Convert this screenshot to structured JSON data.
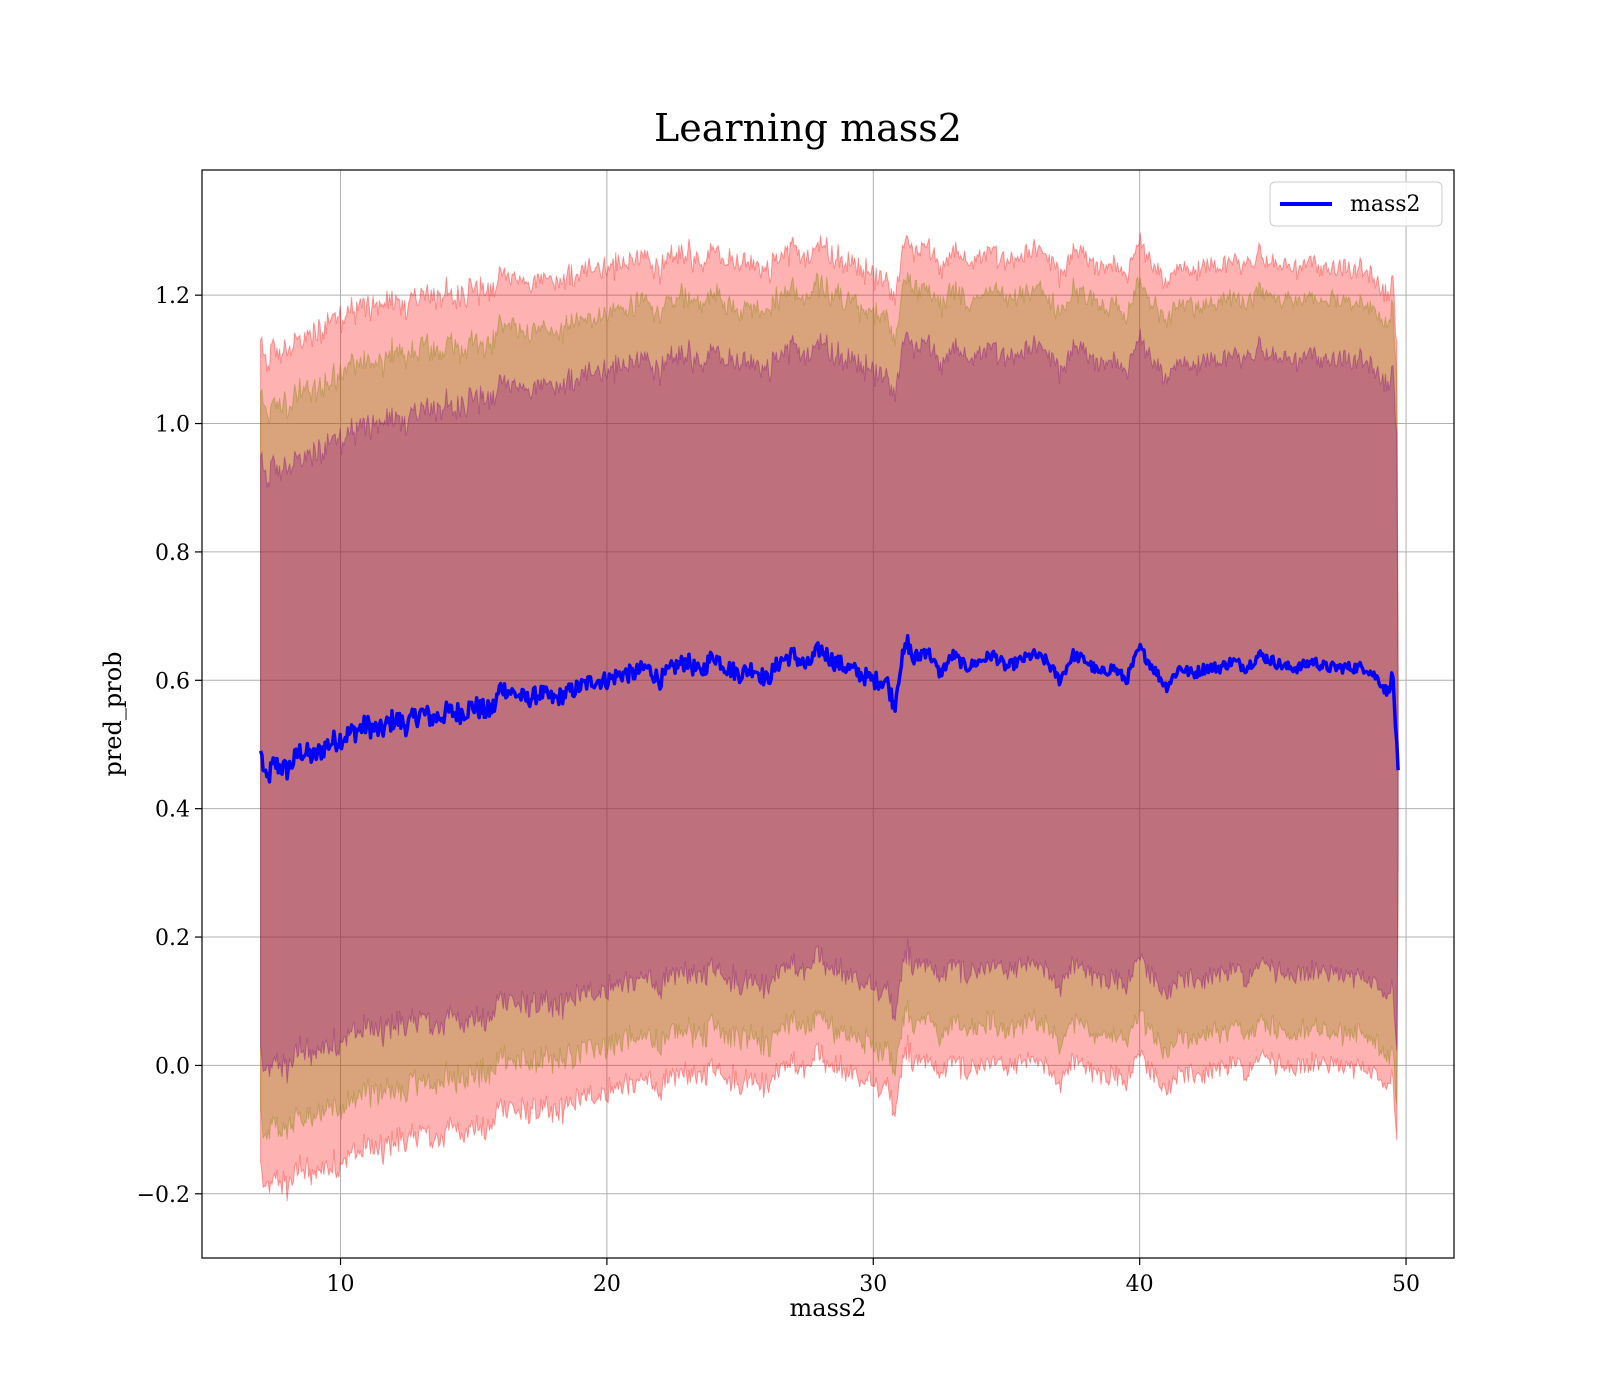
{
  "chart_data": {
    "type": "line",
    "title": "Learning mass2",
    "xlabel": "mass2",
    "ylabel": "pred_prob",
    "xlim": [
      4.8,
      51.8
    ],
    "ylim": [
      -0.3,
      1.395
    ],
    "xticks": [
      10,
      20,
      30,
      40,
      50
    ],
    "xtick_labels": [
      "10",
      "20",
      "30",
      "40",
      "50"
    ],
    "yticks": [
      -0.2,
      0.0,
      0.2,
      0.4,
      0.6,
      0.8,
      1.0,
      1.2
    ],
    "ytick_labels": [
      "−0.2",
      "0.0",
      "0.2",
      "0.4",
      "0.6",
      "0.8",
      "1.0",
      "1.2"
    ],
    "grid": true,
    "legend_position": "top-right",
    "colors": {
      "line": "#0000ff",
      "band_outer": "#ff0000",
      "band_middle": "#808000",
      "band_inner": "#800080"
    },
    "bands": [
      {
        "id": "outer",
        "color": "#ff0000",
        "half_width": [
          0.64,
          0.66,
          0.65,
          0.64,
          0.63,
          0.63,
          0.62
        ]
      },
      {
        "id": "middle",
        "color": "#808000",
        "half_width": [
          0.56,
          0.57,
          0.57,
          0.57,
          0.57,
          0.57,
          0.57
        ]
      },
      {
        "id": "inner",
        "color": "#800080",
        "half_width": [
          0.46,
          0.47,
          0.48,
          0.48,
          0.48,
          0.48,
          0.48
        ]
      }
    ],
    "band_half_width_x": [
      7,
      10,
      15,
      20,
      30,
      40,
      49.5
    ],
    "series": [
      {
        "name": "mass2",
        "color": "#0000ff",
        "x": [
          7.0,
          7.2,
          7.5,
          8.0,
          8.5,
          9.0,
          9.5,
          10.0,
          10.5,
          11.0,
          11.5,
          12.0,
          12.5,
          13.0,
          13.5,
          14.0,
          14.5,
          15.0,
          15.5,
          15.8,
          16.0,
          16.5,
          17.0,
          17.5,
          18.0,
          18.5,
          19.0,
          19.5,
          20.0,
          20.5,
          21.0,
          21.5,
          22.0,
          22.5,
          23.0,
          23.5,
          24.0,
          24.5,
          25.0,
          25.5,
          26.0,
          26.5,
          27.0,
          27.5,
          28.0,
          28.5,
          29.0,
          29.5,
          30.0,
          30.5,
          30.8,
          31.0,
          31.3,
          31.5,
          32.0,
          32.5,
          33.0,
          33.5,
          34.0,
          34.5,
          35.0,
          35.5,
          36.0,
          36.5,
          37.0,
          37.5,
          38.0,
          38.5,
          39.0,
          39.5,
          40.0,
          40.5,
          41.0,
          41.5,
          42.0,
          42.5,
          43.0,
          43.5,
          44.0,
          44.5,
          45.0,
          45.5,
          46.0,
          46.5,
          47.0,
          47.5,
          48.0,
          48.5,
          49.0,
          49.3,
          49.5,
          49.7
        ],
        "y": [
          0.49,
          0.44,
          0.47,
          0.46,
          0.49,
          0.48,
          0.5,
          0.51,
          0.52,
          0.53,
          0.52,
          0.54,
          0.53,
          0.55,
          0.54,
          0.55,
          0.55,
          0.56,
          0.55,
          0.56,
          0.59,
          0.58,
          0.57,
          0.58,
          0.57,
          0.58,
          0.59,
          0.6,
          0.6,
          0.61,
          0.61,
          0.62,
          0.6,
          0.62,
          0.63,
          0.61,
          0.64,
          0.62,
          0.61,
          0.62,
          0.6,
          0.63,
          0.64,
          0.62,
          0.65,
          0.63,
          0.62,
          0.61,
          0.6,
          0.6,
          0.56,
          0.62,
          0.66,
          0.63,
          0.65,
          0.61,
          0.64,
          0.62,
          0.63,
          0.64,
          0.62,
          0.63,
          0.64,
          0.63,
          0.6,
          0.64,
          0.63,
          0.61,
          0.62,
          0.6,
          0.65,
          0.62,
          0.59,
          0.62,
          0.61,
          0.62,
          0.62,
          0.63,
          0.62,
          0.64,
          0.63,
          0.62,
          0.62,
          0.63,
          0.62,
          0.62,
          0.62,
          0.62,
          0.6,
          0.58,
          0.61,
          0.46
        ]
      }
    ]
  }
}
